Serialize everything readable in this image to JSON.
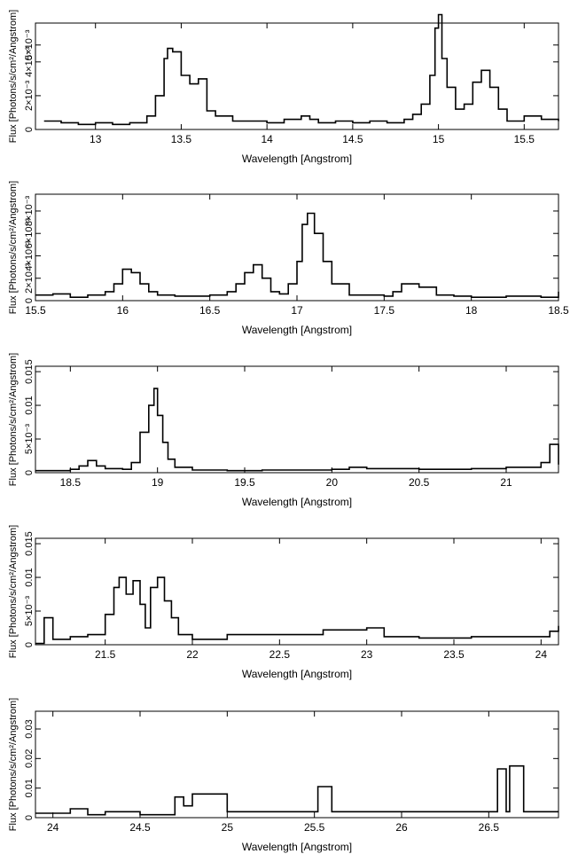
{
  "chart_data": [
    {
      "type": "line",
      "title": "",
      "xlabel": "Wavelength [Angstrom]",
      "ylabel": "Flux [Photons/s/cm²/Angstrom]",
      "xlim": [
        12.65,
        15.7
      ],
      "ylim": [
        0,
        0.0063
      ],
      "x_ticks": [
        13,
        13.5,
        14,
        14.5,
        15,
        15.5
      ],
      "x_tick_labels": [
        "13",
        "13.5",
        "14",
        "14.5",
        "15",
        "15.5"
      ],
      "y_ticks": [
        0,
        0.002,
        0.004,
        0.005
      ],
      "y_tick_labels": [
        "0",
        "2×10⁻³",
        "4×10⁻³",
        "5×10⁻³"
      ],
      "grid": false,
      "series": [
        {
          "x": [
            12.7,
            12.8,
            12.9,
            13.0,
            13.1,
            13.2,
            13.3,
            13.35,
            13.4,
            13.42,
            13.45,
            13.5,
            13.55,
            13.6,
            13.65,
            13.7,
            13.8,
            13.9,
            14.0,
            14.1,
            14.2,
            14.25,
            14.3,
            14.4,
            14.5,
            14.6,
            14.7,
            14.8,
            14.85,
            14.9,
            14.95,
            14.98,
            15.0,
            15.02,
            15.05,
            15.1,
            15.15,
            15.2,
            15.25,
            15.3,
            15.35,
            15.4,
            15.5,
            15.6,
            15.7
          ],
          "y": [
            0.0005,
            0.0004,
            0.0003,
            0.0004,
            0.0003,
            0.0004,
            0.0008,
            0.002,
            0.0042,
            0.0048,
            0.0046,
            0.0032,
            0.0027,
            0.003,
            0.0011,
            0.0008,
            0.0005,
            0.0005,
            0.0004,
            0.0006,
            0.0008,
            0.0006,
            0.0004,
            0.0005,
            0.0004,
            0.0005,
            0.0004,
            0.0006,
            0.0009,
            0.0015,
            0.0032,
            0.006,
            0.0068,
            0.0042,
            0.0025,
            0.0012,
            0.0015,
            0.0028,
            0.0035,
            0.0025,
            0.0012,
            0.0005,
            0.0008,
            0.0006,
            0.0005
          ]
        }
      ]
    },
    {
      "type": "line",
      "title": "",
      "xlabel": "Wavelength [Angstrom]",
      "ylabel": "Flux [Photons/s/cm²/Angstrom]",
      "xlim": [
        15.5,
        18.5
      ],
      "ylim": [
        0,
        0.0095
      ],
      "x_ticks": [
        15.5,
        16,
        16.5,
        17,
        17.5,
        18,
        18.5
      ],
      "x_tick_labels": [
        "15.5",
        "16",
        "16.5",
        "17",
        "17.5",
        "18",
        "18.5"
      ],
      "y_ticks": [
        0,
        0.002,
        0.004,
        0.006,
        0.008
      ],
      "y_tick_labels": [
        "0",
        "2×10⁻³",
        "4×10⁻³",
        "6×10⁻³",
        "8×10⁻³"
      ],
      "grid": false,
      "series": [
        {
          "x": [
            15.5,
            15.6,
            15.7,
            15.8,
            15.9,
            15.95,
            16.0,
            16.05,
            16.1,
            16.15,
            16.2,
            16.3,
            16.4,
            16.5,
            16.6,
            16.65,
            16.7,
            16.75,
            16.8,
            16.85,
            16.9,
            16.95,
            17.0,
            17.03,
            17.06,
            17.1,
            17.15,
            17.2,
            17.3,
            17.4,
            17.5,
            17.55,
            17.6,
            17.7,
            17.8,
            17.9,
            18.0,
            18.2,
            18.4,
            18.5
          ],
          "y": [
            0.0005,
            0.0006,
            0.0003,
            0.0005,
            0.0008,
            0.0015,
            0.0028,
            0.0025,
            0.0015,
            0.0008,
            0.0005,
            0.0004,
            0.0004,
            0.0005,
            0.0008,
            0.0015,
            0.0025,
            0.0032,
            0.002,
            0.0008,
            0.0006,
            0.0015,
            0.0035,
            0.0068,
            0.0078,
            0.006,
            0.0035,
            0.0015,
            0.0005,
            0.0005,
            0.0004,
            0.0008,
            0.0015,
            0.0012,
            0.0005,
            0.0004,
            0.0003,
            0.0004,
            0.0003,
            0.0008
          ]
        }
      ]
    },
    {
      "type": "line",
      "title": "",
      "xlabel": "Wavelength [Angstrom]",
      "ylabel": "Flux [Photons/s/cm²/Angstrom]",
      "xlim": [
        18.3,
        21.3
      ],
      "ylim": [
        0,
        0.0158
      ],
      "x_ticks": [
        18.5,
        19,
        19.5,
        20,
        20.5,
        21
      ],
      "x_tick_labels": [
        "18.5",
        "19",
        "19.5",
        "20",
        "20.5",
        "21"
      ],
      "y_ticks": [
        0,
        0.005,
        0.01,
        0.015
      ],
      "y_tick_labels": [
        "0",
        "5×10⁻³",
        "0.01",
        "0.015"
      ],
      "grid": false,
      "series": [
        {
          "x": [
            18.3,
            18.4,
            18.5,
            18.55,
            18.6,
            18.65,
            18.7,
            18.8,
            18.85,
            18.9,
            18.95,
            18.98,
            19.0,
            19.03,
            19.06,
            19.1,
            19.2,
            19.4,
            19.6,
            19.8,
            20.0,
            20.1,
            20.2,
            20.5,
            20.8,
            21.0,
            21.2,
            21.25,
            21.3
          ],
          "y": [
            0.0003,
            0.0003,
            0.0005,
            0.001,
            0.0018,
            0.001,
            0.0006,
            0.0005,
            0.0015,
            0.006,
            0.01,
            0.0125,
            0.0085,
            0.0045,
            0.002,
            0.0008,
            0.0004,
            0.0003,
            0.0004,
            0.0004,
            0.0005,
            0.0008,
            0.0006,
            0.0005,
            0.0006,
            0.0008,
            0.0015,
            0.0042,
            0.0012
          ]
        }
      ]
    },
    {
      "type": "line",
      "title": "",
      "xlabel": "Wavelength [Angstrom]",
      "ylabel": "Flux [Photons/s/cm²/Angstrom]",
      "xlim": [
        21.1,
        24.1
      ],
      "ylim": [
        0,
        0.0158
      ],
      "x_ticks": [
        21.5,
        22,
        22.5,
        23,
        23.5,
        24
      ],
      "x_tick_labels": [
        "21.5",
        "22",
        "22.5",
        "23",
        "23.5",
        "24"
      ],
      "y_ticks": [
        0,
        0.005,
        0.01,
        0.015
      ],
      "y_tick_labels": [
        "0",
        "5×10⁻³",
        "0.01",
        "0.015"
      ],
      "grid": false,
      "series": [
        {
          "x": [
            21.1,
            21.15,
            21.2,
            21.3,
            21.4,
            21.5,
            21.55,
            21.58,
            21.62,
            21.66,
            21.7,
            21.73,
            21.76,
            21.8,
            21.84,
            21.88,
            21.92,
            22.0,
            22.2,
            22.5,
            22.75,
            23.0,
            23.1,
            23.3,
            23.6,
            23.9,
            24.05,
            24.1
          ],
          "y": [
            0.0002,
            0.004,
            0.0008,
            0.0012,
            0.0015,
            0.0045,
            0.0085,
            0.01,
            0.0075,
            0.0095,
            0.006,
            0.0025,
            0.0085,
            0.01,
            0.0065,
            0.004,
            0.0015,
            0.0008,
            0.0015,
            0.0015,
            0.0022,
            0.0025,
            0.0012,
            0.001,
            0.0012,
            0.0012,
            0.002,
            0.0028
          ]
        }
      ]
    },
    {
      "type": "line",
      "title": "",
      "xlabel": "Wavelength [Angstrom]",
      "ylabel": "Flux [Photons/s/cm²/Angstrom]",
      "xlim": [
        23.9,
        26.9
      ],
      "ylim": [
        0,
        0.036
      ],
      "x_ticks": [
        24,
        24.5,
        25,
        25.5,
        26,
        26.5
      ],
      "x_tick_labels": [
        "24",
        "24.5",
        "25",
        "25.5",
        "26",
        "26.5"
      ],
      "y_ticks": [
        0,
        0.01,
        0.02,
        0.03
      ],
      "y_tick_labels": [
        "0",
        "0.01",
        "0.02",
        "0.03"
      ],
      "grid": false,
      "series": [
        {
          "x": [
            23.9,
            24.0,
            24.1,
            24.2,
            24.3,
            24.5,
            24.7,
            24.75,
            24.8,
            25.0,
            25.5,
            25.52,
            25.6,
            26.0,
            26.5,
            26.55,
            26.6,
            26.62,
            26.7,
            26.9
          ],
          "y": [
            0.0015,
            0.0015,
            0.003,
            0.001,
            0.002,
            0.001,
            0.007,
            0.004,
            0.008,
            0.002,
            0.002,
            0.0105,
            0.002,
            0.002,
            0.002,
            0.0165,
            0.002,
            0.0175,
            0.002,
            0.002
          ]
        }
      ]
    }
  ]
}
